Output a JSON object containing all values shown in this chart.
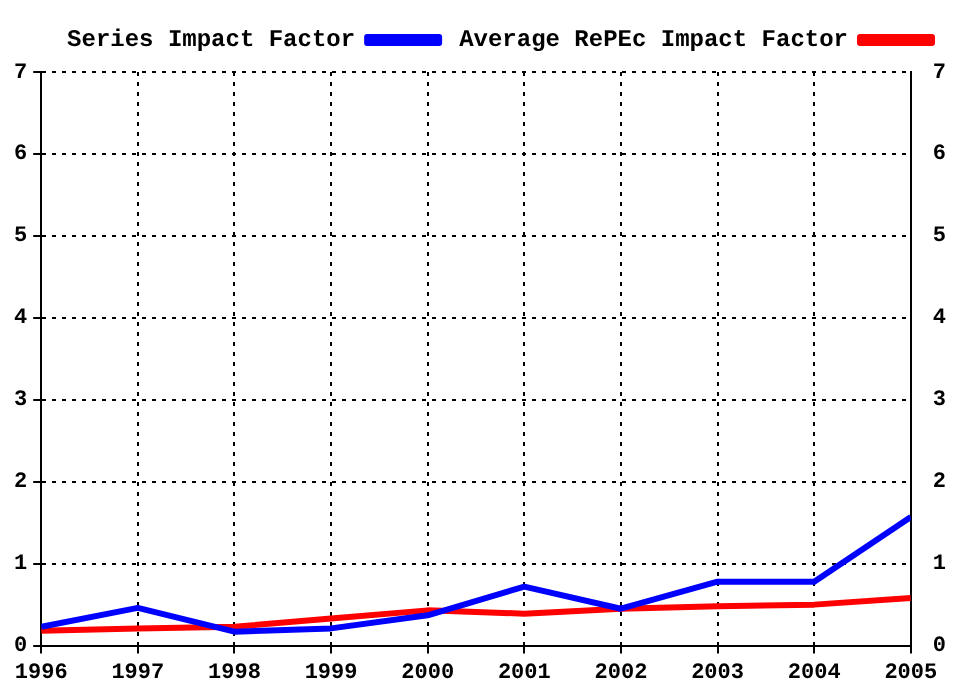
{
  "chart_data": {
    "type": "line",
    "x": [
      1996,
      1997,
      1998,
      1999,
      2000,
      2001,
      2002,
      2003,
      2004,
      2005
    ],
    "series": [
      {
        "name": "Series Impact Factor",
        "color": "#0000ff",
        "values": [
          0.23,
          0.46,
          0.17,
          0.21,
          0.37,
          0.72,
          0.45,
          0.78,
          0.78,
          1.57
        ]
      },
      {
        "name": "Average RePEc Impact Factor",
        "color": "#ff0000",
        "values": [
          0.18,
          0.21,
          0.23,
          0.33,
          0.43,
          0.39,
          0.45,
          0.48,
          0.5,
          0.58
        ]
      }
    ],
    "xlim": [
      1996,
      2005
    ],
    "xticks": [
      1996,
      1997,
      1998,
      1999,
      2000,
      2001,
      2002,
      2003,
      2004,
      2005
    ],
    "ylim": [
      0,
      7
    ],
    "yticks": [
      0,
      1,
      2,
      3,
      4,
      5,
      6,
      7
    ],
    "y2lim": [
      0,
      7
    ],
    "y2ticks": [
      0,
      1,
      2,
      3,
      4,
      5,
      6,
      7
    ],
    "grid": true,
    "legend": "top left",
    "marker": "none",
    "line_style": "solid"
  }
}
